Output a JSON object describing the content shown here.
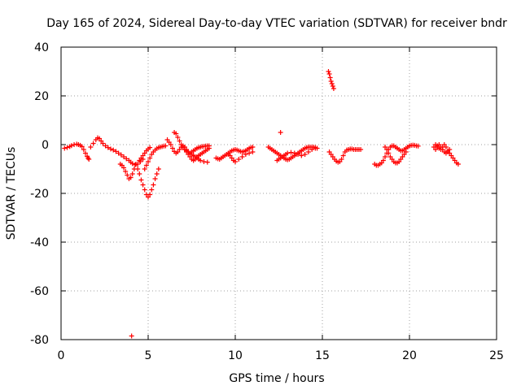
{
  "chart_data": {
    "type": "scatter",
    "title": "Day 165 of 2024, Sidereal Day-to-day VTEC variation (SDTVAR) for receiver bndr",
    "xlabel": "GPS time / hours",
    "ylabel": "SDTVAR / TECUs",
    "xlim": [
      0,
      25
    ],
    "ylim": [
      -80,
      40
    ],
    "xticks": [
      0,
      5,
      10,
      15,
      20,
      25
    ],
    "yticks": [
      -80,
      -60,
      -40,
      -20,
      0,
      20,
      40
    ],
    "grid": true,
    "marker": "+",
    "color": "#ff0000",
    "series": [
      {
        "name": "SDTVAR",
        "x": [
          0.2,
          0.35,
          0.5,
          0.6,
          0.75,
          0.9,
          1.0,
          1.1,
          1.2,
          1.3,
          1.4,
          1.5,
          1.55,
          1.6,
          1.7,
          1.85,
          2.0,
          2.1,
          2.2,
          2.3,
          2.4,
          2.55,
          2.7,
          2.85,
          3.0,
          3.15,
          3.3,
          3.45,
          3.6,
          3.75,
          3.9,
          4.0,
          4.1,
          4.25,
          4.4,
          4.55,
          4.7,
          3.4,
          3.5,
          3.6,
          3.7,
          3.8,
          3.9,
          4.0,
          4.1,
          4.2,
          4.3,
          4.5,
          4.6,
          4.7,
          4.8,
          4.9,
          5.0,
          5.1,
          4.4,
          4.5,
          4.6,
          4.7,
          4.8,
          4.9,
          5.0,
          5.1,
          5.2,
          5.3,
          5.4,
          5.5,
          5.6,
          4.8,
          4.9,
          5.0,
          5.1,
          5.2,
          5.3,
          5.4,
          5.5,
          5.6,
          5.7,
          5.8,
          5.9,
          6.0,
          4.05,
          6.1,
          6.2,
          6.3,
          6.4,
          6.5,
          6.6,
          6.7,
          6.8,
          6.9,
          7.0,
          7.1,
          7.2,
          7.3,
          7.4,
          7.5,
          7.6,
          7.7,
          7.8,
          7.9,
          8.0,
          8.1,
          8.2,
          8.3,
          8.4,
          8.5,
          6.5,
          6.6,
          6.7,
          6.8,
          6.9,
          7.0,
          7.1,
          7.2,
          7.3,
          7.4,
          7.5,
          7.6,
          7.7,
          7.8,
          7.9,
          8.0,
          8.2,
          8.4,
          7.1,
          7.2,
          7.3,
          7.4,
          7.5,
          7.6,
          7.7,
          7.8,
          7.9,
          8.0,
          8.1,
          8.2,
          8.3,
          8.4,
          8.5,
          8.9,
          9.0,
          9.1,
          9.2,
          9.3,
          9.4,
          9.5,
          9.6,
          9.7,
          9.8,
          9.9,
          10.0,
          10.1,
          10.2,
          10.3,
          10.4,
          10.5,
          10.6,
          10.7,
          10.8,
          10.9,
          11.0,
          9.6,
          9.7,
          9.8,
          9.9,
          10.0,
          10.2,
          10.4,
          10.6,
          10.8,
          11.0,
          11.9,
          12.0,
          12.1,
          12.2,
          12.3,
          12.4,
          12.5,
          12.6,
          12.7,
          12.8,
          12.9,
          13.0,
          13.1,
          13.2,
          13.3,
          13.4,
          13.5,
          13.6,
          13.7,
          13.8,
          13.9,
          14.0,
          14.1,
          14.2,
          14.3,
          14.4,
          14.5,
          14.6,
          14.7,
          12.4,
          12.5,
          12.6,
          12.7,
          12.8,
          12.9,
          13.0,
          13.2,
          13.4,
          13.6,
          13.8,
          14.0,
          14.2,
          14.4,
          14.6,
          12.6,
          15.35,
          15.4,
          15.45,
          15.5,
          15.55,
          15.6,
          15.65,
          15.4,
          15.5,
          15.6,
          15.7,
          15.8,
          15.9,
          16.0,
          16.1,
          16.2,
          16.3,
          16.4,
          16.5,
          16.6,
          16.7,
          16.8,
          16.9,
          17.0,
          17.1,
          17.2,
          18.0,
          18.1,
          18.2,
          18.3,
          18.4,
          18.5,
          18.6,
          18.7,
          18.8,
          18.9,
          19.0,
          19.1,
          19.2,
          19.3,
          19.4,
          19.5,
          19.6,
          19.7,
          19.8,
          19.9,
          20.0,
          20.1,
          20.2,
          20.3,
          20.4,
          20.5,
          18.6,
          18.7,
          18.8,
          18.9,
          19.0,
          19.1,
          19.2,
          19.3,
          19.4,
          19.5,
          19.6,
          19.7,
          19.8,
          21.4,
          21.5,
          21.6,
          21.7,
          21.8,
          21.9,
          22.0,
          22.1,
          22.2,
          22.3,
          22.4,
          22.5,
          22.6,
          22.7,
          22.8,
          21.5,
          21.6,
          21.7,
          21.8,
          21.9,
          22.0,
          22.1,
          22.2,
          22.3
        ],
        "y": [
          -1.5,
          -1.2,
          -0.8,
          -0.4,
          0.0,
          0.2,
          0.0,
          -0.3,
          -0.8,
          -2.0,
          -3.5,
          -4.8,
          -5.5,
          -6.0,
          -1.0,
          0.5,
          2.0,
          2.8,
          2.5,
          1.5,
          0.5,
          -0.5,
          -1.2,
          -1.8,
          -2.2,
          -2.8,
          -3.5,
          -4.2,
          -5.0,
          -5.8,
          -6.5,
          -7.2,
          -7.8,
          -8.3,
          -8.0,
          -7.0,
          -6.0,
          -8.0,
          -8.5,
          -9.5,
          -11.0,
          -12.5,
          -14.0,
          -13.5,
          -12.0,
          -10.0,
          -8.0,
          -6.5,
          -5.5,
          -4.5,
          -3.5,
          -2.5,
          -1.8,
          -1.2,
          -10.0,
          -12.0,
          -14.5,
          -16.5,
          -18.5,
          -20.5,
          -21.5,
          -20.5,
          -18.5,
          -16.5,
          -14.0,
          -12.0,
          -10.0,
          -10.0,
          -8.5,
          -7.0,
          -5.5,
          -4.0,
          -3.0,
          -2.2,
          -1.6,
          -1.2,
          -1.0,
          -0.8,
          -0.6,
          -0.5,
          -78.5,
          2.0,
          1.0,
          0.0,
          -1.5,
          -2.8,
          -3.5,
          -3.0,
          -2.0,
          -1.0,
          -0.5,
          -1.0,
          -2.0,
          -3.0,
          -3.5,
          -3.0,
          -2.5,
          -2.0,
          -1.5,
          -1.2,
          -1.0,
          -0.8,
          -0.7,
          -0.6,
          -0.5,
          -0.5,
          5.0,
          4.5,
          3.0,
          1.5,
          0.0,
          -1.2,
          -2.0,
          -2.5,
          -3.0,
          -3.5,
          -4.0,
          -4.5,
          -5.0,
          -5.5,
          -6.0,
          -6.5,
          -7.0,
          -7.2,
          -2.0,
          -3.0,
          -4.0,
          -5.0,
          -6.0,
          -6.5,
          -6.0,
          -5.0,
          -4.5,
          -4.0,
          -3.5,
          -3.0,
          -2.5,
          -2.0,
          -1.5,
          -5.5,
          -5.8,
          -6.0,
          -5.5,
          -5.0,
          -4.5,
          -4.0,
          -3.5,
          -3.0,
          -2.5,
          -2.2,
          -2.0,
          -2.2,
          -2.5,
          -2.8,
          -3.0,
          -2.8,
          -2.5,
          -2.0,
          -1.5,
          -1.2,
          -1.0,
          -4.0,
          -4.5,
          -5.5,
          -6.5,
          -7.0,
          -6.0,
          -5.0,
          -4.0,
          -3.5,
          -3.0,
          -1.0,
          -1.5,
          -2.0,
          -2.5,
          -3.0,
          -3.5,
          -4.0,
          -4.5,
          -5.0,
          -5.5,
          -6.0,
          -6.2,
          -6.0,
          -5.5,
          -5.0,
          -4.5,
          -4.0,
          -3.5,
          -3.0,
          -2.5,
          -2.0,
          -1.5,
          -1.2,
          -1.0,
          -1.0,
          -1.0,
          -1.0,
          -1.2,
          -1.5,
          -6.5,
          -6.0,
          -5.5,
          -5.0,
          -4.5,
          -4.0,
          -3.5,
          -3.2,
          -3.5,
          -4.0,
          -4.5,
          -4.0,
          -3.0,
          -2.0,
          -1.5,
          5.0,
          30.0,
          29.0,
          27.5,
          26.0,
          25.0,
          24.0,
          23.0,
          -3.0,
          -4.0,
          -5.0,
          -6.0,
          -6.8,
          -7.2,
          -7.0,
          -6.0,
          -4.5,
          -3.0,
          -2.2,
          -2.0,
          -1.8,
          -1.8,
          -2.0,
          -2.0,
          -2.0,
          -2.0,
          -2.0,
          -8.0,
          -8.5,
          -8.5,
          -8.0,
          -7.5,
          -6.5,
          -5.0,
          -3.5,
          -2.0,
          -1.0,
          -0.5,
          -0.5,
          -1.0,
          -1.5,
          -2.0,
          -2.5,
          -2.5,
          -2.0,
          -1.5,
          -1.0,
          -0.5,
          -0.3,
          -0.2,
          -0.3,
          -0.5,
          -0.6,
          -1.0,
          -2.0,
          -3.5,
          -5.0,
          -6.0,
          -7.0,
          -7.5,
          -7.5,
          -7.0,
          -6.0,
          -5.0,
          -4.0,
          -3.0,
          -1.0,
          0.0,
          -0.5,
          -1.5,
          -2.0,
          -1.0,
          0.0,
          -1.0,
          -2.5,
          -3.5,
          -4.5,
          -5.5,
          -6.5,
          -7.5,
          -8.0,
          -2.0,
          -1.0,
          0.0,
          -1.0,
          -2.0,
          -3.0,
          -3.5,
          -3.0,
          -2.0
        ]
      }
    ]
  }
}
